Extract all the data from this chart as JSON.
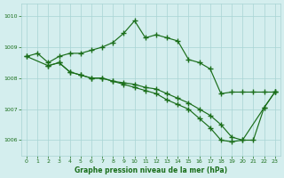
{
  "line1_x": [
    0,
    1,
    2,
    3,
    4,
    5,
    6,
    7,
    8,
    9,
    10,
    11,
    12,
    13,
    14,
    15,
    16,
    17,
    18,
    19,
    20,
    21,
    22,
    23
  ],
  "line1_y": [
    1008.7,
    1008.8,
    1008.5,
    1008.7,
    1008.8,
    1008.8,
    1008.9,
    1009.0,
    1009.15,
    1009.45,
    1009.85,
    1009.3,
    1009.4,
    1009.3,
    1009.2,
    1008.6,
    1008.5,
    1008.3,
    1007.5,
    1007.55,
    1007.55,
    1007.55,
    1007.55,
    1007.55
  ],
  "line2_x": [
    0,
    2,
    3,
    4,
    5,
    6,
    7,
    8,
    9,
    10,
    11,
    12,
    13,
    14,
    15,
    16,
    17,
    18,
    19,
    20,
    21,
    22,
    23
  ],
  "line2_y": [
    1008.7,
    1008.4,
    1008.5,
    1008.2,
    1008.1,
    1008.0,
    1008.0,
    1007.9,
    1007.85,
    1007.8,
    1007.7,
    1007.65,
    1007.5,
    1007.35,
    1007.2,
    1007.0,
    1006.8,
    1006.5,
    1006.1,
    1006.0,
    1006.0,
    1007.05,
    1007.55
  ],
  "line3_x": [
    2,
    3,
    4,
    5,
    6,
    7,
    8,
    9,
    10,
    11,
    12,
    13,
    14,
    15,
    16,
    17,
    18,
    19,
    20,
    22,
    23
  ],
  "line3_y": [
    1008.4,
    1008.5,
    1008.2,
    1008.1,
    1008.0,
    1008.0,
    1007.9,
    1007.8,
    1007.7,
    1007.6,
    1007.5,
    1007.3,
    1007.15,
    1007.0,
    1006.7,
    1006.4,
    1006.0,
    1005.95,
    1006.0,
    1007.05,
    1007.55
  ],
  "line_color": "#1a6e1a",
  "bg_color": "#d4eeee",
  "grid_color": "#a8d4d4",
  "xlabel": "Graphe pression niveau de la mer (hPa)",
  "ylim": [
    1005.5,
    1010.4
  ],
  "yticks": [
    1006,
    1007,
    1008,
    1009,
    1010
  ],
  "xticks": [
    0,
    1,
    2,
    3,
    4,
    5,
    6,
    7,
    8,
    9,
    10,
    11,
    12,
    13,
    14,
    15,
    16,
    17,
    18,
    19,
    20,
    21,
    22,
    23
  ]
}
